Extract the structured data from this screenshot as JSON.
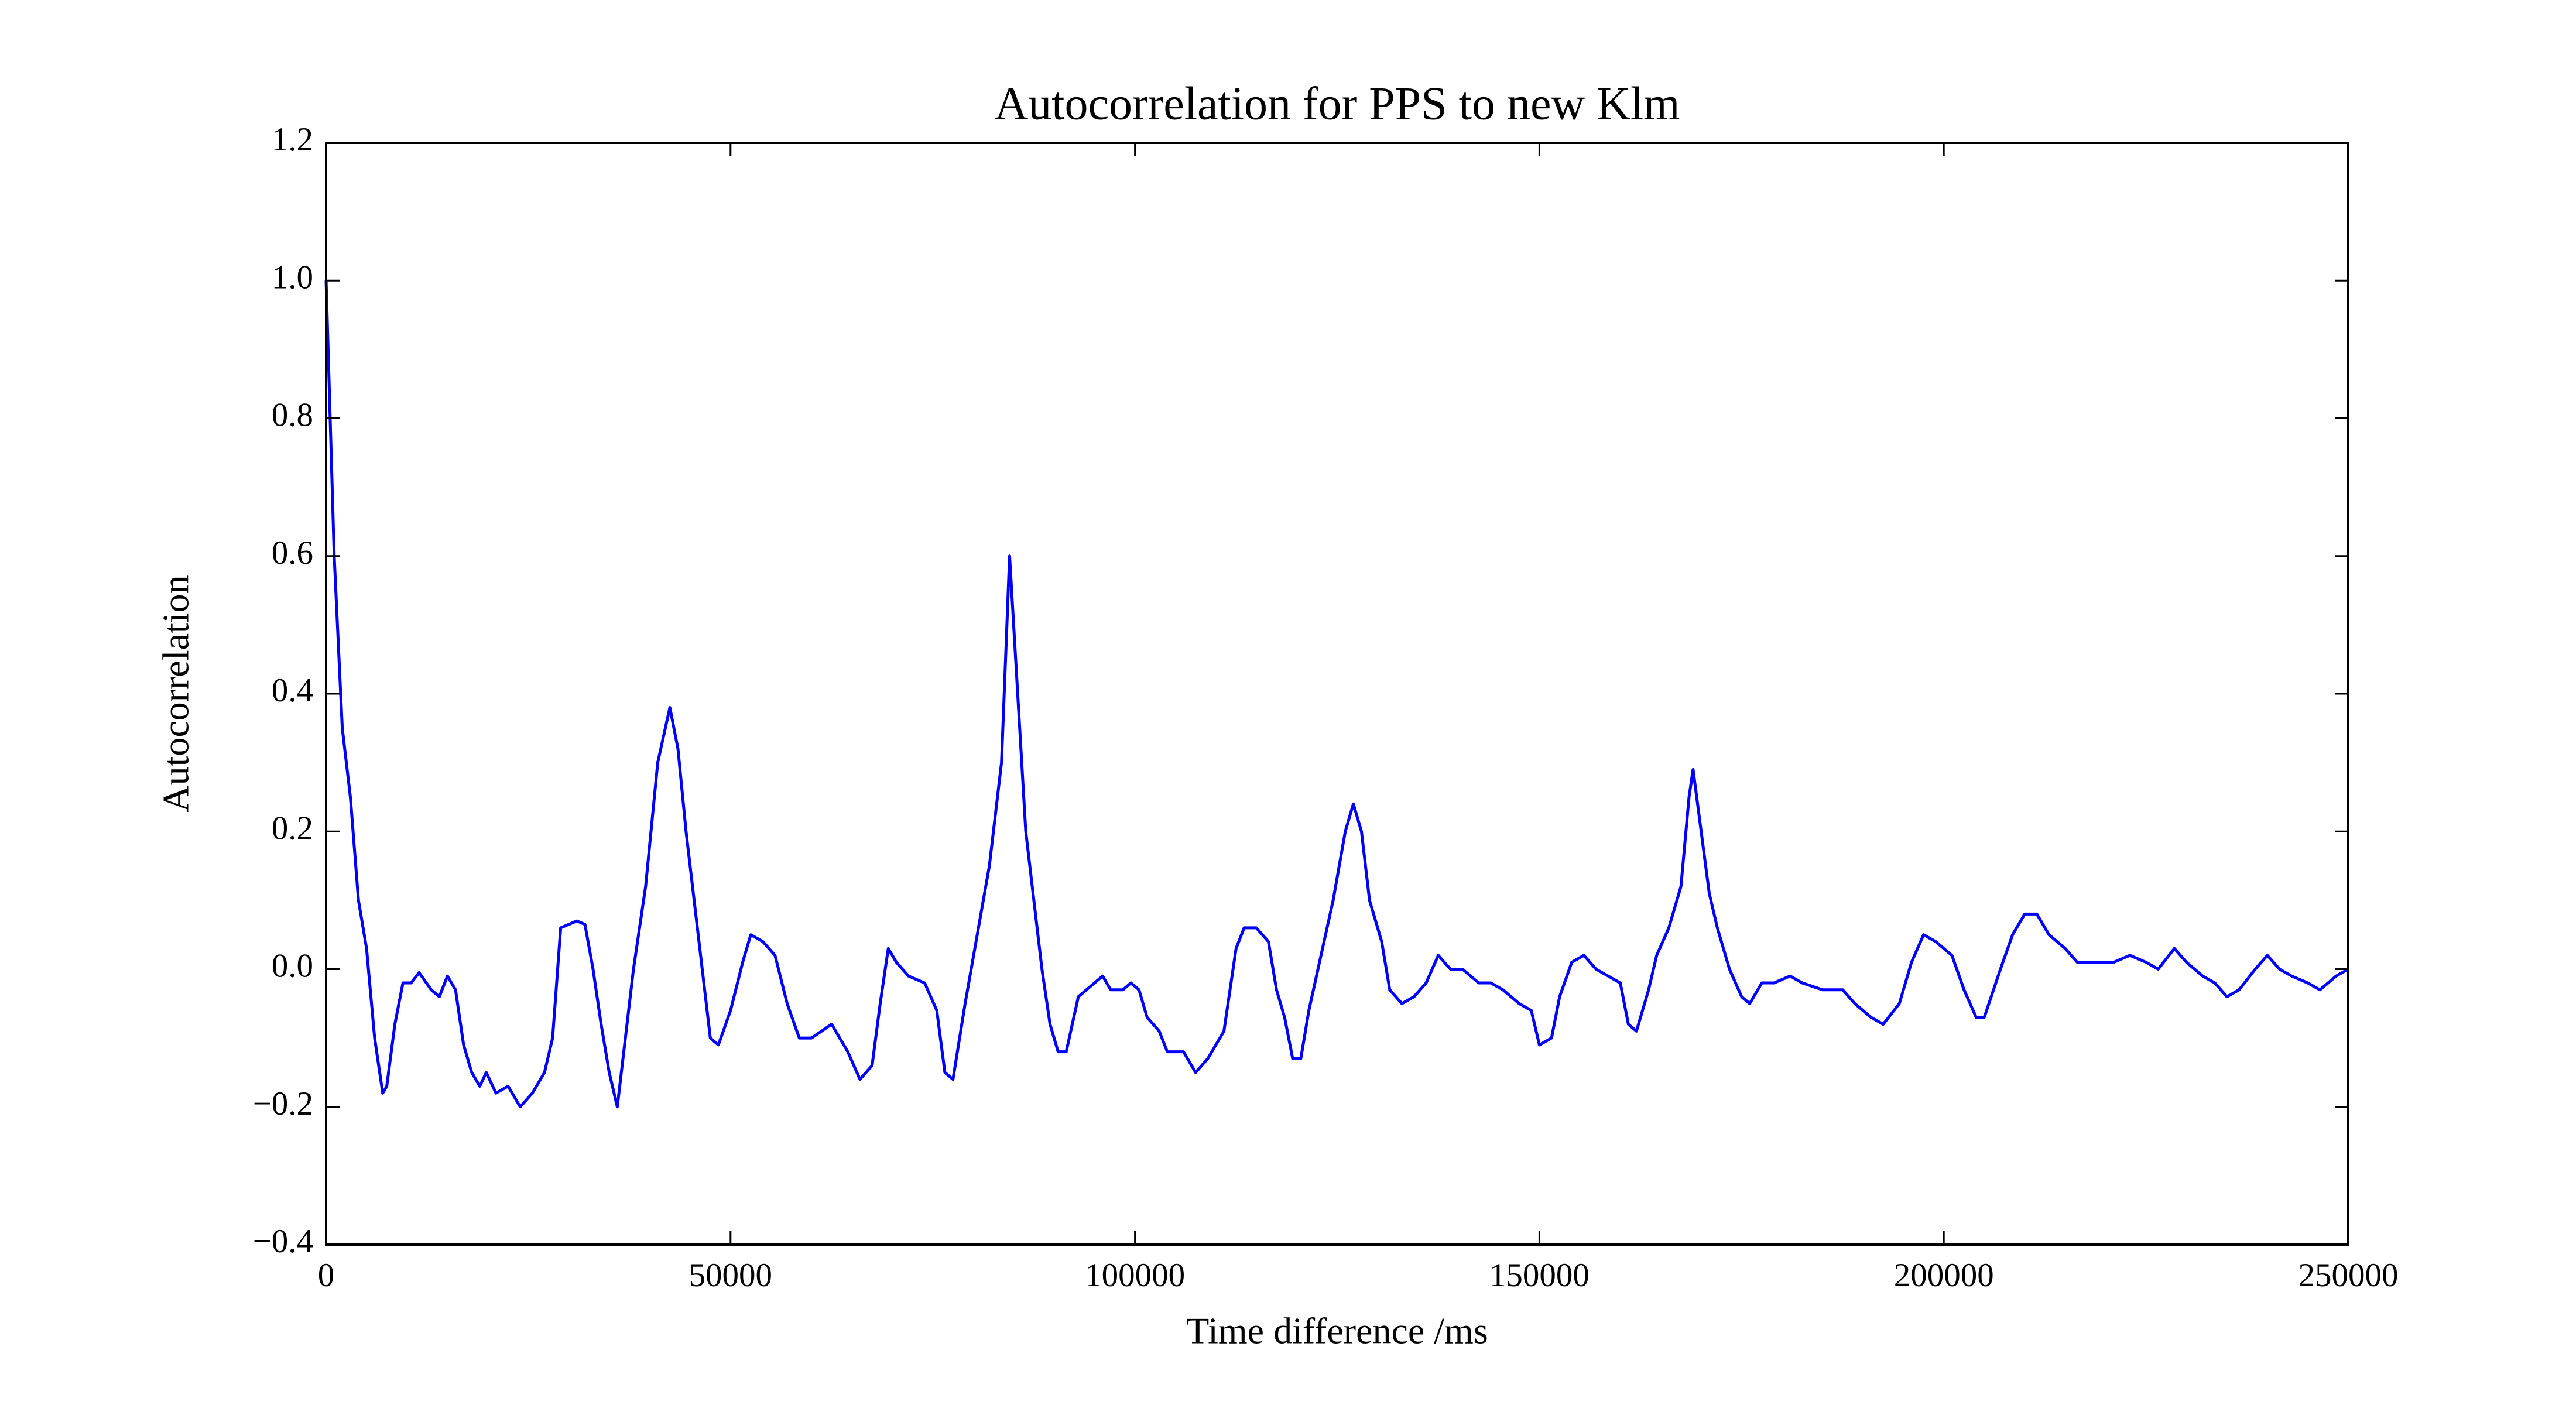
{
  "chart_data": {
    "type": "line",
    "title": "Autocorrelation for PPS to new Klm",
    "xlabel": "Time difference /ms",
    "ylabel": "Autocorrelation",
    "color": "#0000ff",
    "x": [
      0,
      1000,
      2000,
      3000,
      4000,
      5000,
      6000,
      7000,
      7500,
      8500,
      9500,
      10500,
      11500,
      13000,
      14000,
      15000,
      16000,
      17000,
      18000,
      19000,
      19800,
      21000,
      22500,
      24000,
      25500,
      27000,
      28000,
      29000,
      30000,
      31000,
      32000,
      33000,
      34000,
      35000,
      36000,
      37000,
      38000,
      39500,
      41000,
      42500,
      43500,
      44500,
      45500,
      46500,
      47500,
      48500,
      50000,
      51500,
      52500,
      54000,
      55500,
      57000,
      58500,
      60000,
      62500,
      64500,
      66000,
      67500,
      68500,
      69500,
      70500,
      72000,
      74000,
      75500,
      76500,
      77500,
      79000,
      80500,
      82000,
      83500,
      84500,
      85500,
      86500,
      87500,
      88500,
      89500,
      90500,
      91500,
      93000,
      95000,
      96000,
      97000,
      98500,
      99500,
      100500,
      101500,
      103000,
      104000,
      106000,
      107500,
      109000,
      111000,
      112500,
      113500,
      115000,
      116500,
      117500,
      118500,
      119500,
      120500,
      121500,
      123000,
      124500,
      126000,
      127000,
      128000,
      129000,
      130500,
      131500,
      133000,
      134500,
      136000,
      137500,
      139000,
      140500,
      142500,
      144000,
      145500,
      147500,
      149000,
      150000,
      151500,
      152500,
      154000,
      155500,
      157000,
      158500,
      160000,
      161000,
      162000,
      163500,
      164500,
      166000,
      167500,
      168500,
      169000,
      170000,
      171000,
      172000,
      173500,
      175000,
      176000,
      177500,
      179000,
      181000,
      182500,
      185000,
      187500,
      189000,
      191000,
      192500,
      194500,
      196000,
      197500,
      199000,
      201000,
      202500,
      204000,
      205000,
      207000,
      208500,
      210000,
      211500,
      213000,
      215000,
      216500,
      218500,
      221000,
      223000,
      225000,
      226500,
      228500,
      230000,
      232000,
      233500,
      235000,
      236500,
      238500,
      240000,
      241500,
      243000,
      245000,
      246500,
      248500,
      250000
    ],
    "values": [
      1.0,
      0.6,
      0.35,
      0.25,
      0.1,
      0.03,
      -0.1,
      -0.18,
      -0.17,
      -0.08,
      -0.02,
      -0.02,
      -0.005,
      -0.03,
      -0.04,
      -0.01,
      -0.03,
      -0.11,
      -0.15,
      -0.17,
      -0.15,
      -0.18,
      -0.17,
      -0.2,
      -0.18,
      -0.15,
      -0.1,
      0.06,
      0.065,
      0.07,
      0.065,
      0.0,
      -0.08,
      -0.15,
      -0.2,
      -0.1,
      0.0,
      0.12,
      0.3,
      0.38,
      0.32,
      0.2,
      0.1,
      0.0,
      -0.1,
      -0.11,
      -0.06,
      0.01,
      0.05,
      0.04,
      0.02,
      -0.05,
      -0.1,
      -0.1,
      -0.08,
      -0.12,
      -0.16,
      -0.14,
      -0.05,
      0.03,
      0.01,
      -0.01,
      -0.02,
      -0.06,
      -0.15,
      -0.16,
      -0.05,
      0.05,
      0.15,
      0.3,
      0.6,
      0.4,
      0.2,
      0.1,
      0.0,
      -0.08,
      -0.12,
      -0.12,
      -0.04,
      -0.02,
      -0.01,
      -0.03,
      -0.03,
      -0.02,
      -0.03,
      -0.07,
      -0.09,
      -0.12,
      -0.12,
      -0.15,
      -0.13,
      -0.09,
      0.03,
      0.06,
      0.06,
      0.04,
      -0.03,
      -0.07,
      -0.13,
      -0.13,
      -0.06,
      0.02,
      0.1,
      0.2,
      0.24,
      0.2,
      0.1,
      0.04,
      -0.03,
      -0.05,
      -0.04,
      -0.02,
      0.02,
      0.0,
      0.0,
      -0.02,
      -0.02,
      -0.03,
      -0.05,
      -0.06,
      -0.11,
      -0.1,
      -0.04,
      0.01,
      0.02,
      0.0,
      -0.01,
      -0.02,
      -0.08,
      -0.09,
      -0.03,
      0.02,
      0.06,
      0.12,
      0.25,
      0.29,
      0.2,
      0.11,
      0.06,
      0.0,
      -0.04,
      -0.05,
      -0.02,
      -0.02,
      -0.01,
      -0.02,
      -0.03,
      -0.03,
      -0.05,
      -0.07,
      -0.08,
      -0.05,
      0.01,
      0.05,
      0.04,
      0.02,
      -0.03,
      -0.07,
      -0.07,
      0.0,
      0.05,
      0.08,
      0.08,
      0.05,
      0.03,
      0.01,
      0.01,
      0.01,
      0.02,
      0.01,
      0.0,
      0.03,
      0.01,
      -0.01,
      -0.02,
      -0.04,
      -0.03,
      0.0,
      0.02,
      0.0,
      -0.01,
      -0.02,
      -0.03,
      -0.01,
      0.0
    ],
    "xlim": [
      0,
      250000
    ],
    "ylim": [
      -0.4,
      1.2
    ],
    "xticks": [
      0,
      50000,
      100000,
      150000,
      200000,
      250000
    ],
    "yticks": [
      {
        "value": -0.4,
        "label": "−0.4"
      },
      {
        "value": -0.2,
        "label": "−0.2"
      },
      {
        "value": 0,
        "label": "0.0"
      },
      0.2,
      0.4,
      0.6,
      0.8,
      {
        "value": 1,
        "label": "1.0"
      },
      1.2
    ]
  }
}
